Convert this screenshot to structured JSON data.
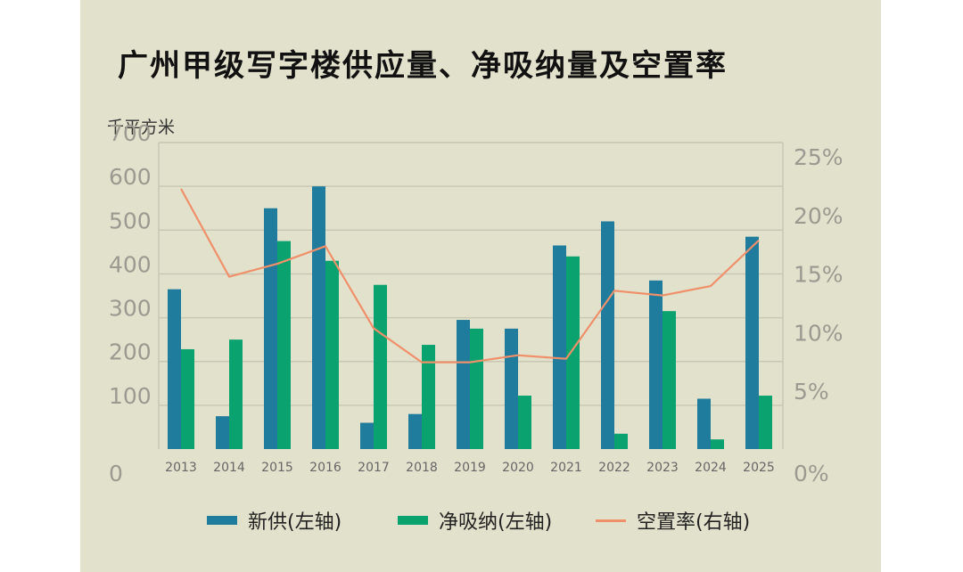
{
  "chart_data": {
    "type": "bar",
    "title": "广州甲级写字楼供应量、净吸纳量及空置率",
    "ylabel": "千平方米",
    "categories": [
      "2013",
      "2014",
      "2015",
      "2016",
      "2017",
      "2018",
      "2019",
      "2020",
      "2021",
      "2022",
      "2023",
      "2024",
      "2025"
    ],
    "ylim": [
      0,
      700
    ],
    "yticks": [
      "0",
      "100",
      "200",
      "300",
      "400",
      "500",
      "600",
      "700"
    ],
    "y2lim": [
      0,
      25
    ],
    "y2ticks": [
      "0%",
      "5%",
      "10%",
      "15%",
      "20%",
      "25%"
    ],
    "series": [
      {
        "name": "新供(左轴)",
        "kind": "bar",
        "axis": "left",
        "color": "#1f7c9c",
        "values": [
          365,
          75,
          550,
          600,
          60,
          80,
          295,
          275,
          465,
          520,
          385,
          115,
          485
        ]
      },
      {
        "name": "净吸纳(左轴)",
        "kind": "bar",
        "axis": "left",
        "color": "#0aa36f",
        "values": [
          228,
          250,
          475,
          430,
          375,
          238,
          275,
          122,
          440,
          35,
          315,
          22,
          122
        ]
      },
      {
        "name": "空置率(右轴)",
        "kind": "line",
        "axis": "right",
        "color": "#f0906a",
        "values": [
          22.2,
          14.7,
          15.8,
          17.3,
          10.3,
          7.4,
          7.4,
          8.0,
          7.7,
          13.5,
          13.1,
          13.9,
          17.8
        ]
      }
    ]
  }
}
